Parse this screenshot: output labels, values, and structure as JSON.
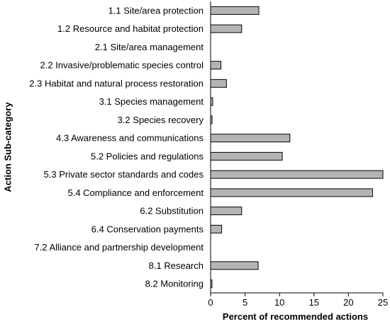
{
  "chart_data": {
    "type": "bar",
    "orientation": "horizontal",
    "xlabel": "Percent of recommended actions",
    "ylabel": "Action Sub-category",
    "xlim": [
      0,
      25
    ],
    "xticks": [
      0,
      5,
      10,
      15,
      20,
      25
    ],
    "grid": false,
    "legend": "none",
    "colors": {
      "bar_fill": "#b4b4b4",
      "bar_stroke": "#000000",
      "axis": "#000000"
    },
    "categories": [
      "1.1 Site/area protection",
      "1.2 Resource and habitat protection",
      "2.1 Site/area management",
      "2.2 Invasive/problematic species control",
      "2.3 Habitat and natural process restoration",
      "3.1 Species management",
      "3.2 Species recovery",
      "4.3 Awareness and communications",
      "5.2 Policies and regulations",
      "5.3 Private sector standards and codes",
      "5.4 Compliance and enforcement",
      "6.2 Substitution",
      "6.4 Conservation payments",
      "7.2 Alliance and partnership development",
      "8.1 Research",
      "8.2 Monitoring"
    ],
    "values": [
      7.0,
      4.5,
      0,
      1.5,
      2.3,
      0.3,
      0.2,
      11.5,
      10.4,
      25.2,
      23.5,
      4.5,
      1.6,
      0,
      6.9,
      0.2
    ]
  }
}
